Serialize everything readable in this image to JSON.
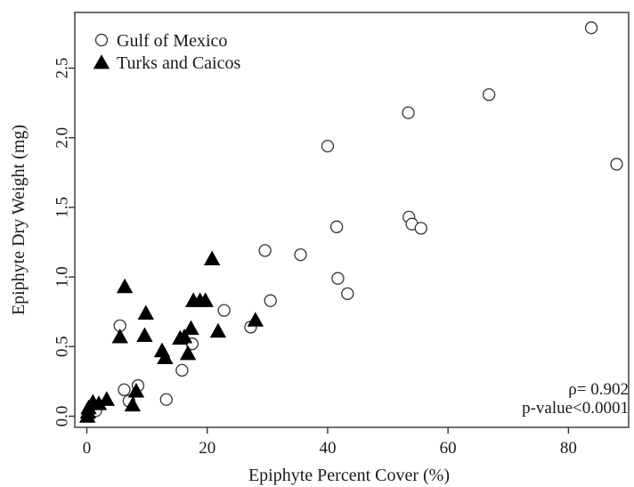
{
  "chart_data": {
    "type": "scatter",
    "title": "",
    "xlabel": "Epiphyte Percent Cover (%)",
    "ylabel": "Epiphyte Dry Weight (mg)",
    "xlim": [
      -2,
      90
    ],
    "ylim": [
      -0.08,
      2.9
    ],
    "xticks": [
      0,
      20,
      40,
      60,
      80
    ],
    "yticks": [
      0.0,
      0.5,
      1.0,
      1.5,
      2.0,
      2.5
    ],
    "xtick_labels": [
      "0",
      "20",
      "40",
      "60",
      "80"
    ],
    "ytick_labels": [
      "0.0",
      "0.5",
      "1.0",
      "1.5",
      "2.0",
      "2.5"
    ],
    "grid": false,
    "legend_position": "top-left",
    "series": [
      {
        "name": "Gulf of Mexico",
        "marker": "open-circle",
        "color": "#333333",
        "points": [
          [
            0.3,
            0.0
          ],
          [
            0.6,
            0.05
          ],
          [
            1.5,
            0.04
          ],
          [
            5.5,
            0.65
          ],
          [
            6.2,
            0.19
          ],
          [
            7.0,
            0.11
          ],
          [
            8.5,
            0.22
          ],
          [
            13.2,
            0.12
          ],
          [
            15.8,
            0.33
          ],
          [
            17.5,
            0.52
          ],
          [
            22.8,
            0.76
          ],
          [
            27.2,
            0.64
          ],
          [
            29.6,
            1.19
          ],
          [
            30.5,
            0.83
          ],
          [
            35.5,
            1.16
          ],
          [
            40.0,
            1.94
          ],
          [
            41.5,
            1.36
          ],
          [
            41.7,
            0.99
          ],
          [
            43.3,
            0.88
          ],
          [
            53.4,
            2.18
          ],
          [
            53.5,
            1.43
          ],
          [
            54.0,
            1.38
          ],
          [
            55.5,
            1.35
          ],
          [
            66.8,
            2.31
          ],
          [
            83.8,
            2.79
          ],
          [
            88.0,
            1.81
          ]
        ]
      },
      {
        "name": "Turks and Caicos",
        "marker": "filled-triangle",
        "color": "#000000",
        "points": [
          [
            0.1,
            0.0
          ],
          [
            0.2,
            0.03
          ],
          [
            0.3,
            0.06
          ],
          [
            1.0,
            0.1
          ],
          [
            2.0,
            0.09
          ],
          [
            3.3,
            0.12
          ],
          [
            5.5,
            0.57
          ],
          [
            6.3,
            0.93
          ],
          [
            7.6,
            0.08
          ],
          [
            8.2,
            0.18
          ],
          [
            9.6,
            0.58
          ],
          [
            9.8,
            0.74
          ],
          [
            12.5,
            0.47
          ],
          [
            13.0,
            0.42
          ],
          [
            15.5,
            0.56
          ],
          [
            16.2,
            0.57
          ],
          [
            16.8,
            0.45
          ],
          [
            17.3,
            0.63
          ],
          [
            17.7,
            0.83
          ],
          [
            18.8,
            0.83
          ],
          [
            19.7,
            0.83
          ],
          [
            20.8,
            1.13
          ],
          [
            21.8,
            0.61
          ],
          [
            28.0,
            0.69
          ]
        ]
      }
    ],
    "annotations": [
      "ρ= 0.902",
      "p-value<0.0001"
    ]
  }
}
